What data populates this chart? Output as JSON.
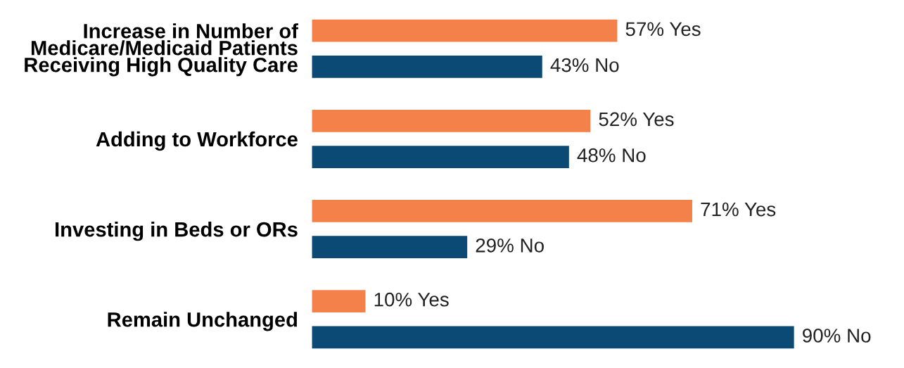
{
  "chart_data": {
    "type": "bar",
    "orientation": "horizontal",
    "categories": [
      "Increase in Number of\nMedicare/Medicaid Patients\nReceiving High Quality Care",
      "Adding to Workforce",
      "Investing in Beds or ORs",
      "Remain Unchanged"
    ],
    "series": [
      {
        "color": "#f4804a",
        "values": [
          57,
          52,
          71,
          10
        ],
        "value_labels": [
          "57% Yes",
          "52% Yes",
          "71% Yes",
          "10% Yes"
        ]
      },
      {
        "color": "#0b4a75",
        "values": [
          43,
          48,
          29,
          90
        ],
        "value_labels": [
          "43% No",
          "48% No",
          "29% No",
          "90% No"
        ]
      }
    ],
    "legend": false,
    "grid": false
  }
}
